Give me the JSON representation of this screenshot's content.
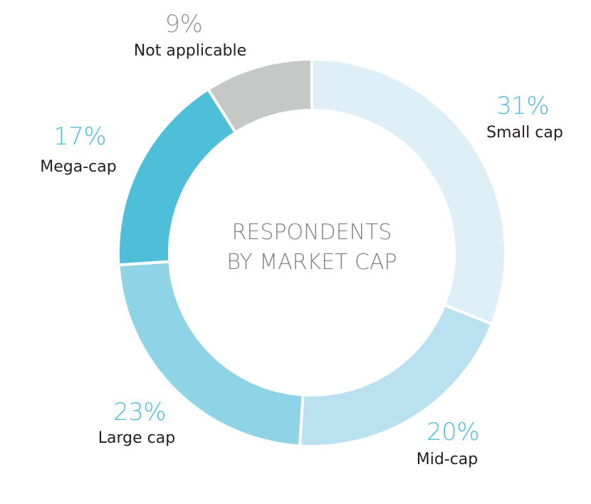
{
  "chart_data": {
    "type": "pie",
    "donut": true,
    "title_lines": [
      "RESPONDENTS",
      "BY MARKET CAP"
    ],
    "slices": [
      {
        "category": "Small cap",
        "value": 31,
        "label": "31%",
        "color": "#deeff8",
        "label_color": "#4fbfd9"
      },
      {
        "category": "Mid-cap",
        "value": 20,
        "label": "20%",
        "color": "#b9e1ef",
        "label_color": "#4fbfd9"
      },
      {
        "category": "Large cap",
        "value": 23,
        "label": "23%",
        "color": "#8fd3e6",
        "label_color": "#4fbfd9"
      },
      {
        "category": "Mega-cap",
        "value": 17,
        "label": "17%",
        "color": "#4fbfd9",
        "label_color": "#4fbfd9"
      },
      {
        "category": "Not applicable",
        "value": 9,
        "label": "9%",
        "color": "#c6c8c8",
        "label_color": "#939598"
      }
    ]
  }
}
